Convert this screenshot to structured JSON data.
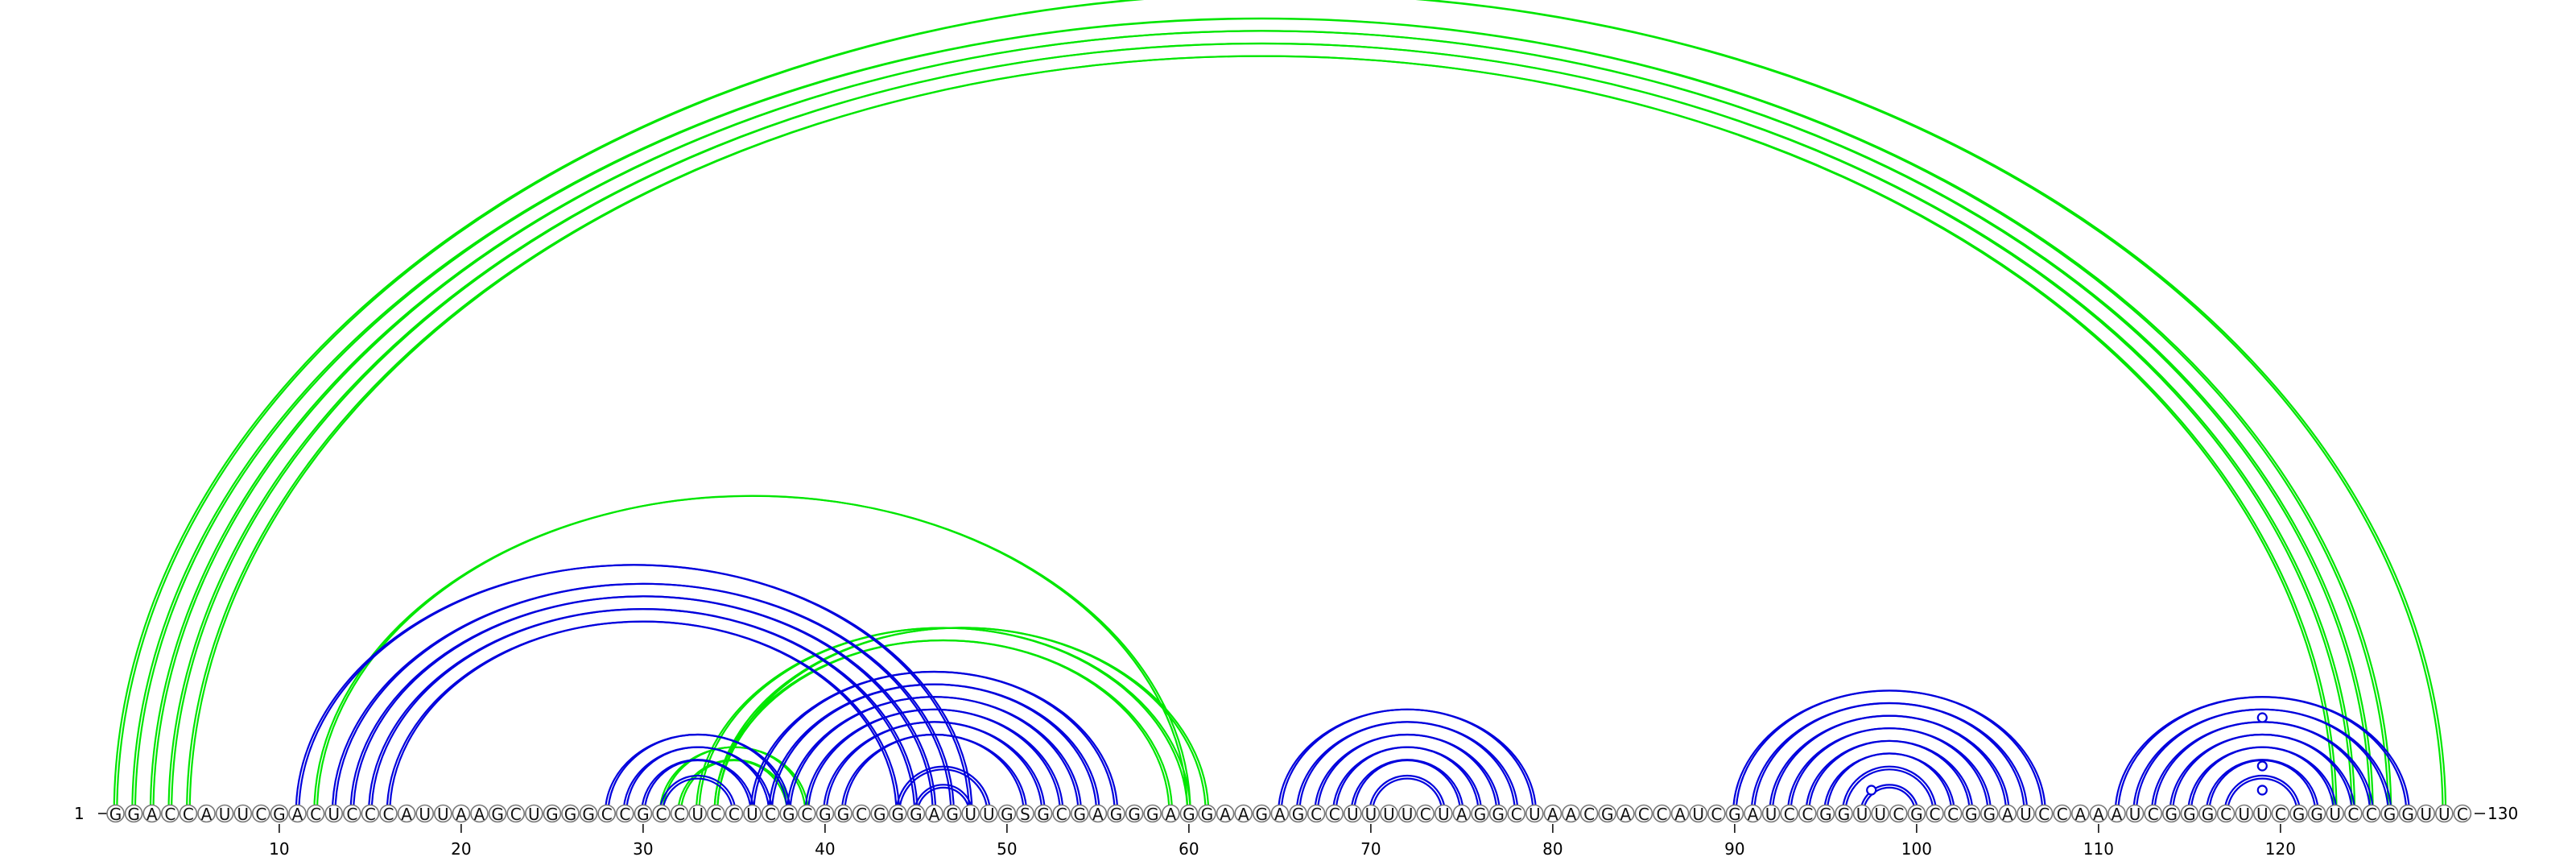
{
  "sequence": "GGACCAUUCGACUCCCAUUAAGCUGGGCCGCCUCCUCGCGGCGGGAGUUGSGCGAGGGAGGAAGAGCCUUUUCUAGGCUAACGACCAUCGAUCCGGUUCGCCGGAUCCAAAUCGGGCUUCGGUCCGGUUC",
  "start_label": "1",
  "end_label": "130",
  "tick_labels": [
    "10",
    "20",
    "30",
    "40",
    "50",
    "60",
    "70",
    "80",
    "90",
    "100",
    "110",
    "120"
  ],
  "colors": {
    "green": "#00e600",
    "blue": "#0000dd"
  },
  "chart_data": {
    "type": "arc-diagram",
    "length": 130,
    "ticks": [
      10,
      20,
      30,
      40,
      50,
      60,
      70,
      80,
      90,
      100,
      110,
      120
    ],
    "pairs": {
      "green": [
        [
          1,
          129
        ],
        [
          2,
          126
        ],
        [
          3,
          125
        ],
        [
          4,
          124
        ],
        [
          5,
          123
        ],
        [
          12,
          60
        ],
        [
          31,
          39
        ],
        [
          32,
          38
        ],
        [
          33,
          60
        ],
        [
          34,
          61
        ],
        [
          34,
          59
        ]
      ],
      "blue": [
        [
          11,
          48
        ],
        [
          13,
          47
        ],
        [
          14,
          46
        ],
        [
          15,
          45
        ],
        [
          16,
          44
        ],
        [
          28,
          38
        ],
        [
          29,
          37
        ],
        [
          30,
          36
        ],
        [
          31,
          35
        ],
        [
          36,
          56
        ],
        [
          37,
          55
        ],
        [
          38,
          54
        ],
        [
          39,
          53
        ],
        [
          40,
          52
        ],
        [
          41,
          51
        ],
        [
          44,
          49
        ],
        [
          45,
          48
        ],
        [
          65,
          79
        ],
        [
          66,
          78
        ],
        [
          67,
          77
        ],
        [
          68,
          76
        ],
        [
          69,
          75
        ],
        [
          70,
          74
        ],
        [
          90,
          107
        ],
        [
          91,
          106
        ],
        [
          92,
          105
        ],
        [
          93,
          104
        ],
        [
          94,
          103
        ],
        [
          95,
          102
        ],
        [
          96,
          101
        ],
        [
          97,
          100
        ],
        [
          111,
          127
        ],
        [
          112,
          126
        ],
        [
          113,
          125
        ],
        [
          114,
          124
        ],
        [
          115,
          123
        ],
        [
          116,
          122
        ],
        [
          117,
          121
        ]
      ]
    },
    "markers": [
      98,
      119,
      119,
      119
    ]
  }
}
